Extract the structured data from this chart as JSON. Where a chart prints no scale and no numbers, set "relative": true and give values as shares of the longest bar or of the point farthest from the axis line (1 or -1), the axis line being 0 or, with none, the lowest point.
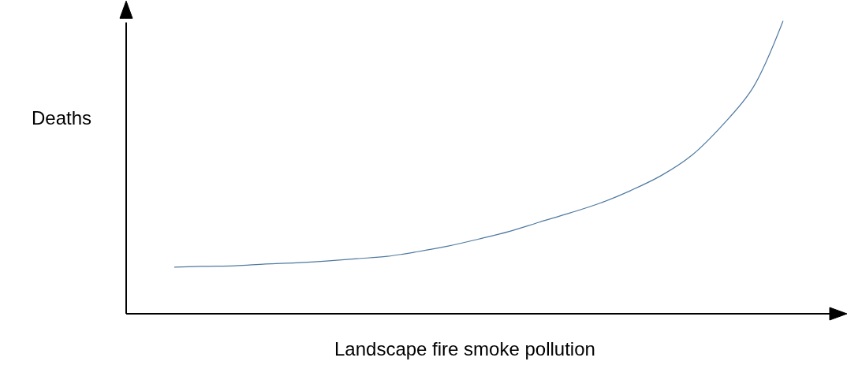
{
  "chart_data": {
    "type": "line",
    "relative": true,
    "xlabel": "Landscape fire smoke pollution",
    "ylabel": "Deaths",
    "categories": [
      null,
      null,
      null,
      null,
      null,
      null,
      null,
      null,
      null,
      null,
      null,
      null,
      null,
      null,
      null,
      null,
      null,
      null,
      null,
      null,
      null
    ],
    "series": [
      {
        "color": "#4f79a0",
        "values": [
          0.159,
          0.162,
          0.164,
          0.17,
          0.174,
          0.18,
          0.188,
          0.196,
          0.212,
          0.231,
          0.255,
          0.281,
          0.313,
          0.344,
          0.378,
          0.421,
          0.472,
          0.541,
          0.643,
          0.77,
          1
        ]
      }
    ],
    "marker": "none",
    "line_style": "solid"
  }
}
